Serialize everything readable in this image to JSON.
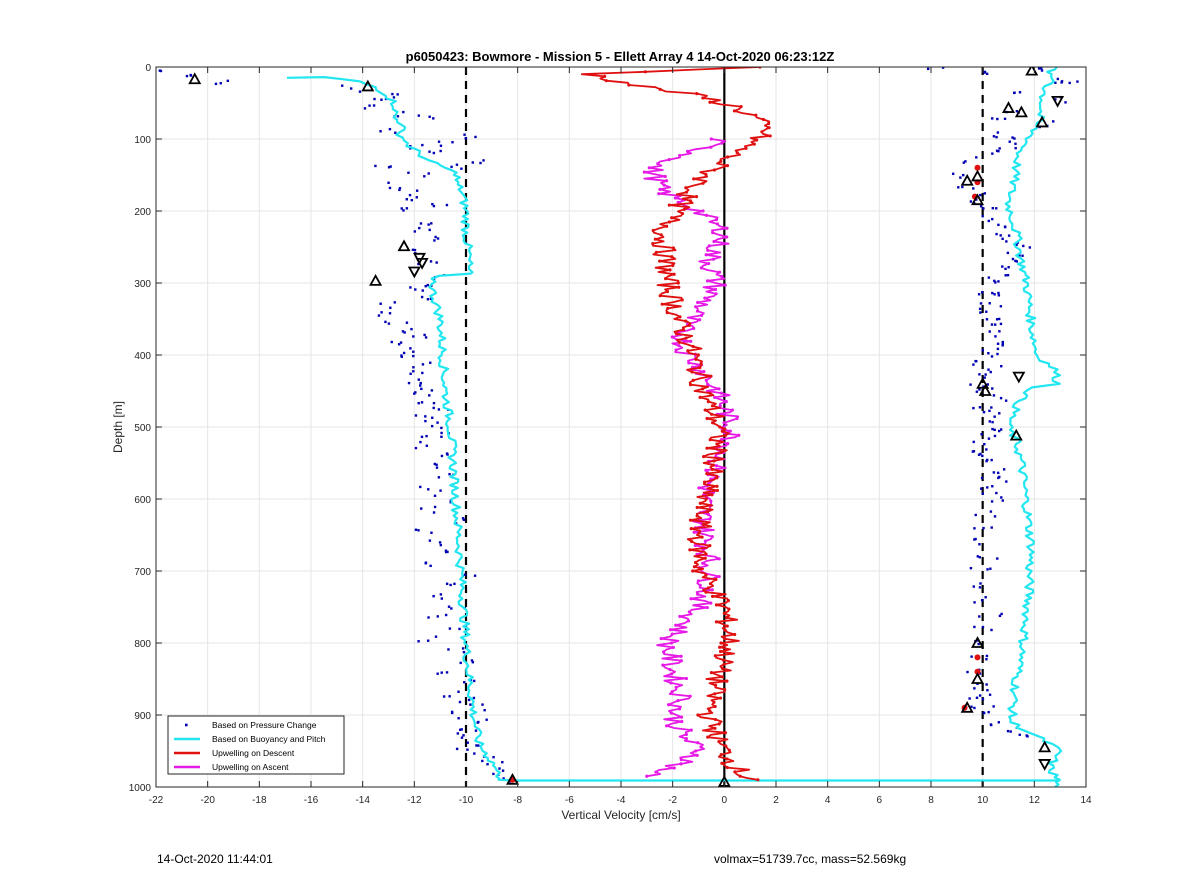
{
  "figure": {
    "timestamp": "14-Oct-2020 11:44:01",
    "info": "volmax=51739.7cc, mass=52.569kg"
  },
  "chart_data": {
    "type": "scatter",
    "title": "p6050423: Bowmore - Mission 5 - Ellett Array 4 14-Oct-2020 06:23:12Z",
    "xlabel": "Vertical Velocity [cm/s]",
    "ylabel": "Depth [m]",
    "xlim": [
      -22,
      14
    ],
    "ylim": [
      0,
      1000
    ],
    "y_reversed": true,
    "grid": true,
    "xticks": [
      -22,
      -20,
      -18,
      -16,
      -14,
      -12,
      -10,
      -8,
      -6,
      -4,
      -2,
      0,
      2,
      4,
      6,
      8,
      10,
      12,
      14
    ],
    "yticks": [
      0,
      100,
      200,
      300,
      400,
      500,
      600,
      700,
      800,
      900,
      1000
    ],
    "legend_position": "bottom-left",
    "reference_lines": [
      {
        "x": -10,
        "style": "dashed",
        "color": "#000000"
      },
      {
        "x": 10,
        "style": "dashed",
        "color": "#000000"
      },
      {
        "x": 0,
        "style": "solid",
        "color": "#000000"
      }
    ],
    "series": [
      {
        "name": "Based on Pressure Change",
        "kind": "points",
        "color": "#0000b4",
        "groups": [
          {
            "x": [
              -21.8,
              -19.3,
              -20.8,
              -14.5,
              -13.2,
              -12.8,
              -13.6,
              -12.4,
              -11.5,
              -12.9,
              -12.1,
              -11.2,
              -13.3,
              -10.4,
              -9.8,
              -10.6,
              -9.4,
              -11.8,
              -12.7,
              -12.2,
              -11.9,
              -11.0,
              -12.4,
              -11.3,
              -11.6,
              -10.8,
              -12.0,
              -11.5,
              -11.2,
              -11.6,
              -12.1,
              -11.7,
              -12.9,
              -13.1,
              -12.7,
              -12.2,
              -11.9,
              -12.5,
              -12.0,
              -12.4,
              -11.7,
              -11.9,
              -12.1,
              -11.4,
              -11.8,
              -11.5,
              -11.1,
              -11.6,
              -11.2,
              -10.9,
              -11.3,
              -11.8,
              -10.7,
              -11.2,
              -10.6,
              -11.4,
              -10.9,
              -11.3,
              -10.2,
              -11.5,
              -11.0,
              -10.4,
              -11.2,
              -10.0,
              -10.7,
              -10.9,
              -10.3,
              -11.0,
              -10.2,
              -11.4,
              -10.5,
              -10.1,
              -10.8,
              -9.7,
              -10.4,
              -10.0,
              -9.5,
              -10.1,
              -9.3,
              -9.8,
              -10.5,
              -9.6,
              -10.1,
              -9.2,
              -9.0,
              -8.8,
              -8.6
            ],
            "y": [
              5,
              20,
              15,
              30,
              45,
              40,
              55,
              65,
              70,
              90,
              110,
              120,
              135,
              140,
              95,
              105,
              130,
              150,
              165,
              175,
              185,
              195,
              200,
              215,
              225,
              240,
              255,
              270,
              290,
              300,
              310,
              320,
              330,
              345,
              355,
              365,
              375,
              385,
              395,
              405,
              415,
              425,
              435,
              445,
              455,
              465,
              475,
              485,
              495,
              505,
              515,
              525,
              540,
              555,
              570,
              585,
              600,
              615,
              630,
              645,
              660,
              675,
              690,
              705,
              720,
              735,
              750,
              765,
              780,
              795,
              810,
              825,
              840,
              855,
              870,
              880,
              890,
              900,
              910,
              920,
              930,
              940,
              950,
              960,
              970,
              980,
              990
            ]
          },
          {
            "x": [
              8.3,
              10.2,
              12.5,
              13.2,
              11.6,
              12.9,
              13.3,
              11.2,
              10.5,
              12.3,
              10.8,
              10.9,
              11.0,
              10.4,
              9.6,
              9.2,
              9.4,
              10.0,
              9.8,
              10.1,
              10.3,
              10.6,
              10.9,
              11.2,
              11.5,
              11.3,
              11.0,
              10.7,
              10.6,
              10.5,
              10.4,
              10.2,
              10.3,
              10.1,
              10.4,
              10.6,
              10.7,
              10.8,
              10.4,
              10.2,
              10.0,
              10.3,
              10.1,
              9.9,
              10.2,
              10.5,
              10.0,
              10.3,
              10.6,
              10.4,
              10.2,
              10.1,
              9.9,
              10.3,
              10.0,
              10.4,
              10.2,
              10.6,
              10.3,
              10.5,
              10.1,
              10.0,
              9.8,
              10.2,
              9.9,
              10.1,
              9.7,
              10.3,
              10.0,
              9.6,
              9.9,
              9.5,
              9.8,
              10.2,
              9.7,
              10.0,
              10.4,
              10.6,
              10.9,
              11.3
            ],
            "y": [
              0,
              10,
              5,
              25,
              35,
              45,
              20,
              60,
              70,
              80,
              95,
              100,
              110,
              120,
              130,
              150,
              170,
              180,
              190,
              200,
              210,
              220,
              230,
              240,
              250,
              260,
              270,
              280,
              290,
              300,
              310,
              320,
              330,
              340,
              350,
              360,
              370,
              380,
              390,
              400,
              410,
              420,
              430,
              440,
              450,
              460,
              470,
              480,
              490,
              500,
              510,
              520,
              530,
              540,
              550,
              560,
              570,
              580,
              590,
              600,
              620,
              640,
              660,
              680,
              700,
              720,
              740,
              760,
              780,
              800,
              820,
              840,
              860,
              870,
              880,
              890,
              900,
              910,
              920,
              930
            ]
          }
        ]
      },
      {
        "name": "Based on Buoyancy and Pitch",
        "kind": "line",
        "color": "#22e6f0",
        "lines": [
          {
            "x": [
              -17.0,
              -15.5,
              -14.2,
              -13.5,
              -13.0,
              -12.7,
              -12.8,
              -12.4,
              -12.6,
              -12.2,
              -11.8,
              -11.5,
              -10.8,
              -10.3,
              -10.4,
              -10.2,
              -10.0,
              -10.0,
              -9.9,
              -9.9,
              -9.9,
              -11.2,
              -11.3,
              -11.0,
              -10.9,
              -10.8,
              -10.6,
              -10.5,
              -10.4,
              -10.3,
              -10.2,
              -10.1,
              -10.0,
              -9.9,
              -9.8,
              -9.7,
              -9.6,
              -9.5,
              -9.3,
              -9.1,
              -8.9,
              -8.8,
              -8.7,
              -8.6,
              -8.6,
              -8.0,
              0.0,
              13.0
            ],
            "y": [
              15,
              14,
              20,
              28,
              40,
              55,
              70,
              80,
              90,
              110,
              120,
              130,
              140,
              150,
              160,
              170,
              200,
              230,
              260,
              285,
              287,
              290,
              310,
              350,
              400,
              450,
              500,
              550,
              600,
              650,
              700,
              750,
              800,
              840,
              870,
              900,
              920,
              940,
              950,
              960,
              970,
              980,
              985,
              988,
              990,
              991,
              991,
              991
            ]
          },
          {
            "x": [
              12.8,
              12.5,
              12.8,
              12.4,
              12.3,
              12.2,
              11.8,
              11.4,
              11.3,
              11.2,
              11.0,
              11.3,
              11.5,
              11.7,
              11.8,
              11.9,
              12.0,
              12.1,
              12.8,
              12.9,
              12.0,
              11.5,
              11.2,
              11.0,
              11.3,
              11.5,
              11.6,
              11.7,
              11.8,
              11.9,
              11.8,
              11.8,
              11.7,
              11.6,
              11.5,
              11.3,
              11.2,
              11.1,
              12.6,
              12.8,
              12.9,
              12.8,
              12.6,
              12.7,
              12.9,
              12.8
            ],
            "y": [
              0,
              10,
              20,
              30,
              50,
              70,
              100,
              120,
              140,
              160,
              190,
              230,
              270,
              300,
              330,
              360,
              380,
              400,
              420,
              440,
              445,
              460,
              480,
              500,
              520,
              550,
              580,
              610,
              640,
              670,
              700,
              730,
              760,
              790,
              820,
              850,
              880,
              910,
              940,
              945,
              950,
              960,
              970,
              980,
              990,
              1000
            ]
          }
        ]
      },
      {
        "name": "Upwelling on Descent",
        "kind": "line",
        "color": "#e01010",
        "points": [
          {
            "v": 1.2,
            "d": 0
          },
          {
            "v": -5.2,
            "d": 10
          },
          {
            "v": -3.5,
            "d": 25
          },
          {
            "v": -1.0,
            "d": 40
          },
          {
            "v": 0.4,
            "d": 55
          },
          {
            "v": 1.2,
            "d": 70
          },
          {
            "v": 1.6,
            "d": 90
          },
          {
            "v": 0.8,
            "d": 110
          },
          {
            "v": -0.4,
            "d": 140
          },
          {
            "v": -1.5,
            "d": 180
          },
          {
            "v": -2.4,
            "d": 230
          },
          {
            "v": -2.2,
            "d": 300
          },
          {
            "v": -1.8,
            "d": 350
          },
          {
            "v": -1.2,
            "d": 400
          },
          {
            "v": -0.8,
            "d": 450
          },
          {
            "v": -0.2,
            "d": 500
          },
          {
            "v": -0.4,
            "d": 550
          },
          {
            "v": -0.8,
            "d": 600
          },
          {
            "v": -1.0,
            "d": 650
          },
          {
            "v": -0.9,
            "d": 700
          },
          {
            "v": 0.0,
            "d": 750
          },
          {
            "v": 0.2,
            "d": 800
          },
          {
            "v": -0.3,
            "d": 850
          },
          {
            "v": -0.6,
            "d": 900
          },
          {
            "v": -0.2,
            "d": 940
          },
          {
            "v": 0.4,
            "d": 970
          },
          {
            "v": 0.8,
            "d": 985
          },
          {
            "v": 1.3,
            "d": 990
          }
        ],
        "markers": [
          {
            "v": -8.2,
            "d": 990
          },
          {
            "v": 9.8,
            "d": 140
          },
          {
            "v": 9.8,
            "d": 160
          },
          {
            "v": 9.7,
            "d": 180
          },
          {
            "v": 9.8,
            "d": 820
          },
          {
            "v": 9.8,
            "d": 840
          },
          {
            "v": 9.3,
            "d": 890
          }
        ]
      },
      {
        "name": "Upwelling on Ascent",
        "kind": "line",
        "color": "#e619e6",
        "points": [
          {
            "v": -0.2,
            "d": 100
          },
          {
            "v": -1.2,
            "d": 120
          },
          {
            "v": -2.8,
            "d": 140
          },
          {
            "v": -2.5,
            "d": 170
          },
          {
            "v": -1.0,
            "d": 200
          },
          {
            "v": 0.0,
            "d": 230
          },
          {
            "v": -0.6,
            "d": 270
          },
          {
            "v": -0.3,
            "d": 300
          },
          {
            "v": -0.8,
            "d": 330
          },
          {
            "v": -1.6,
            "d": 360
          },
          {
            "v": -1.6,
            "d": 390
          },
          {
            "v": -0.9,
            "d": 420
          },
          {
            "v": -0.3,
            "d": 450
          },
          {
            "v": 0.3,
            "d": 500
          },
          {
            "v": 0.2,
            "d": 520
          },
          {
            "v": -0.4,
            "d": 560
          },
          {
            "v": -0.8,
            "d": 600
          },
          {
            "v": -0.8,
            "d": 640
          },
          {
            "v": -0.6,
            "d": 680
          },
          {
            "v": -0.6,
            "d": 720
          },
          {
            "v": -1.2,
            "d": 760
          },
          {
            "v": -2.2,
            "d": 800
          },
          {
            "v": -2.0,
            "d": 840
          },
          {
            "v": -1.6,
            "d": 880
          },
          {
            "v": -2.0,
            "d": 900
          },
          {
            "v": -1.6,
            "d": 930
          },
          {
            "v": -0.9,
            "d": 950
          },
          {
            "v": -1.5,
            "d": 965
          },
          {
            "v": -3.0,
            "d": 985
          }
        ]
      }
    ],
    "triangle_markers": [
      {
        "x": -20.5,
        "y": 17,
        "dir": "up"
      },
      {
        "x": -13.8,
        "y": 27,
        "dir": "up"
      },
      {
        "x": -12.4,
        "y": 249,
        "dir": "up"
      },
      {
        "x": -11.8,
        "y": 265,
        "dir": "down"
      },
      {
        "x": -11.7,
        "y": 272,
        "dir": "down"
      },
      {
        "x": -12.0,
        "y": 284,
        "dir": "down"
      },
      {
        "x": -13.5,
        "y": 297,
        "dir": "up"
      },
      {
        "x": -8.2,
        "y": 990,
        "dir": "up"
      },
      {
        "x": 0.0,
        "y": 993,
        "dir": "up"
      },
      {
        "x": 11.9,
        "y": 5,
        "dir": "up"
      },
      {
        "x": 12.9,
        "y": 47,
        "dir": "down"
      },
      {
        "x": 11.0,
        "y": 57,
        "dir": "up"
      },
      {
        "x": 11.5,
        "y": 63,
        "dir": "up"
      },
      {
        "x": 12.3,
        "y": 77,
        "dir": "up"
      },
      {
        "x": 9.8,
        "y": 152,
        "dir": "up"
      },
      {
        "x": 9.4,
        "y": 158,
        "dir": "up"
      },
      {
        "x": 9.8,
        "y": 185,
        "dir": "up"
      },
      {
        "x": 11.4,
        "y": 430,
        "dir": "down"
      },
      {
        "x": 10.0,
        "y": 440,
        "dir": "up"
      },
      {
        "x": 10.1,
        "y": 450,
        "dir": "up"
      },
      {
        "x": 11.3,
        "y": 512,
        "dir": "up"
      },
      {
        "x": 9.8,
        "y": 800,
        "dir": "up"
      },
      {
        "x": 9.8,
        "y": 850,
        "dir": "up"
      },
      {
        "x": 9.4,
        "y": 890,
        "dir": "up"
      },
      {
        "x": 12.4,
        "y": 945,
        "dir": "up"
      },
      {
        "x": 12.4,
        "y": 968,
        "dir": "down"
      }
    ]
  }
}
